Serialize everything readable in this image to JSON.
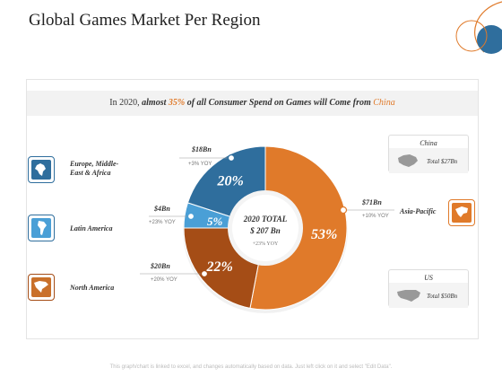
{
  "title": "Global Games Market Per Region",
  "banner": {
    "prefix": "In 2020, ",
    "bold1": "almost ",
    "pct": "35%",
    "bold2": " of all Consumer Spend on Games will Come from ",
    "country": "China"
  },
  "center": {
    "line1": "2020 TOTAL",
    "line2": "$ 207 Bn",
    "line3": "+23% YOY"
  },
  "chart_data": {
    "type": "pie",
    "title": "Global Games Market Per Region",
    "total": "$ 207 Bn",
    "series": [
      {
        "name": "Asia-Pacific",
        "percent": 53,
        "label": "53%",
        "amount": "$71Bn",
        "yoy": "+10% YOY",
        "color": "#e07a2a"
      },
      {
        "name": "North America",
        "percent": 22,
        "label": "22%",
        "amount": "$20Bn",
        "yoy": "+20% YOY",
        "color": "#a54d16"
      },
      {
        "name": "Latin America",
        "percent": 5,
        "label": "5%",
        "amount": "$4Bn",
        "yoy": "+23% YOY",
        "color": "#4a9fd6"
      },
      {
        "name": "Europe, Middle-East & Africa",
        "percent": 20,
        "label": "20%",
        "amount": "$18Bn",
        "yoy": "+3% YOY",
        "color": "#2f6e9d"
      }
    ]
  },
  "regions": {
    "emea": {
      "label_line1": "Europe, Middle-",
      "label_line2": "East & Africa",
      "icon": "europe-map-icon",
      "color": "#2f6e9d"
    },
    "latam": {
      "label": "Latin America",
      "icon": "south-america-map-icon",
      "color": "#2f6e9d"
    },
    "na": {
      "label": "North America",
      "icon": "north-america-map-icon",
      "color": "#a54d16"
    },
    "apac": {
      "label": "Asia-Pacific",
      "icon": "asia-pacific-map-icon",
      "color": "#e07a2a"
    }
  },
  "cards": {
    "china": {
      "title": "China",
      "value": "Total $27Bn",
      "icon": "china-map-icon"
    },
    "us": {
      "title": "US",
      "value": "Total $50Bn",
      "icon": "us-map-icon"
    }
  },
  "footer": "This graph/chart is linked to excel, and changes automatically based on data. Just left click on it and select \"Edit Data\"."
}
